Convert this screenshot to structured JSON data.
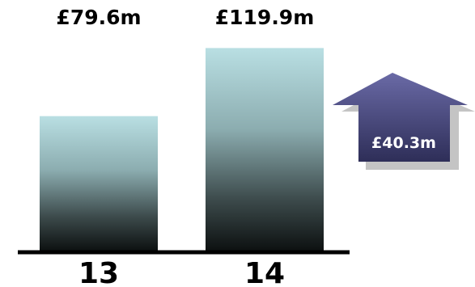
{
  "chart_data": {
    "type": "bar",
    "categories": [
      "13",
      "14"
    ],
    "values": [
      79.6,
      119.9
    ],
    "value_labels": [
      "£79.6m",
      "£119.9m"
    ],
    "ylim": [
      0,
      140
    ],
    "grid": false,
    "bar_gradient": {
      "top": "#b9dfe3",
      "bottom": "#0d1111"
    },
    "axis_color": "#000000",
    "change_indicator": {
      "label": "£40.3m",
      "direction": "up",
      "fill": "#4a4a7a",
      "shadow": "#c4c4c4"
    }
  }
}
